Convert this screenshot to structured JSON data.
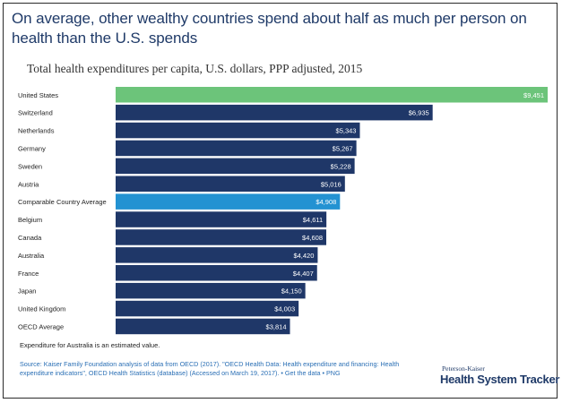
{
  "title": "On average, other wealthy countries spend about half as much per person on health than the U.S. spends",
  "subtitle": "Total health expenditures per capita, U.S. dollars, PPP adjusted, 2015",
  "note": "Expenditure for Australia is an estimated value.",
  "source": {
    "label": "Source: ",
    "text": "Kaiser Family Foundation analysis of data from OECD (2017). \"OECD Health Data: Health expenditure and financing: Health expenditure indicators\", OECD Health Statistics (database) (Accessed on March 19, 2017).",
    "links": "• Get the data • PNG"
  },
  "brand": {
    "small": "Peterson-Kaiser",
    "big": "Health System Tracker"
  },
  "colors": {
    "us": "#6cc47a",
    "average": "#2392d2",
    "default": "#1f3768"
  },
  "chart_data": {
    "type": "bar",
    "orientation": "horizontal",
    "title": "Total health expenditures per capita, U.S. dollars, PPP adjusted, 2015",
    "categories": [
      "United States",
      "Switzerland",
      "Netherlands",
      "Germany",
      "Sweden",
      "Austria",
      "Comparable Country Average",
      "Belgium",
      "Canada",
      "Australia",
      "France",
      "Japan",
      "United Kingdom",
      "OECD Average"
    ],
    "values": [
      9451,
      6935,
      5343,
      5267,
      5228,
      5016,
      4908,
      4611,
      4608,
      4420,
      4407,
      4150,
      4003,
      3814
    ],
    "labels": [
      "$9,451",
      "$6,935",
      "$5,343",
      "$5,267",
      "$5,228",
      "$5,016",
      "$4,908",
      "$4,611",
      "$4,608",
      "$4,420",
      "$4,407",
      "$4,150",
      "$4,003",
      "$3,814"
    ],
    "highlight": {
      "United States": "us",
      "Comparable Country Average": "average"
    },
    "xlim": [
      0,
      9451
    ]
  }
}
